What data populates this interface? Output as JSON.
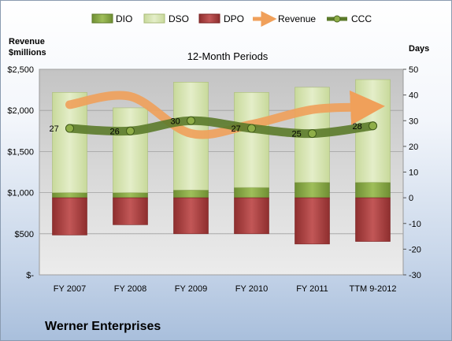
{
  "chart_data": {
    "type": "bar",
    "title": "12-Month Periods",
    "company": "Werner Enterprises",
    "categories": [
      "FY 2007",
      "FY 2008",
      "FY 2009",
      "FY 2010",
      "FY 2011",
      "TTM 9-2012"
    ],
    "left_axis": {
      "label_line1": "Revenue",
      "label_line2": "$millions",
      "ticks": [
        "$-",
        "$500",
        "$1,000",
        "$1,500",
        "$2,000",
        "$2,500"
      ],
      "ylim": [
        0,
        2500
      ]
    },
    "right_axis": {
      "label": "Days",
      "ticks": [
        "-30",
        "-20",
        "-10",
        "0",
        "10",
        "20",
        "30",
        "40",
        "50"
      ],
      "ylim": [
        -30,
        50
      ]
    },
    "legend": [
      "DIO",
      "DSO",
      "DPO",
      "Revenue",
      "CCC"
    ],
    "series": [
      {
        "name": "DIO",
        "axis": "right",
        "values": [
          2,
          2,
          3,
          4,
          6,
          6
        ],
        "color": "#8fb04a"
      },
      {
        "name": "DSO",
        "axis": "right",
        "values": [
          39,
          33,
          42,
          37,
          37,
          40
        ],
        "color": "#d7e4b0"
      },
      {
        "name": "DPO",
        "axis": "right",
        "values": [
          -14.5,
          -10.5,
          -14,
          -14,
          -18,
          -17
        ],
        "color": "#b54444"
      },
      {
        "name": "Revenue",
        "axis": "left",
        "values": [
          2070,
          2170,
          1720,
          1830,
          2010,
          2040
        ],
        "color": "#f2a15c"
      },
      {
        "name": "CCC",
        "axis": "right",
        "values": [
          27,
          26,
          30,
          27,
          25,
          28
        ],
        "labels": [
          "27",
          "26",
          "30",
          "27",
          "25",
          "28"
        ],
        "color": "#5b7a2a"
      }
    ]
  }
}
